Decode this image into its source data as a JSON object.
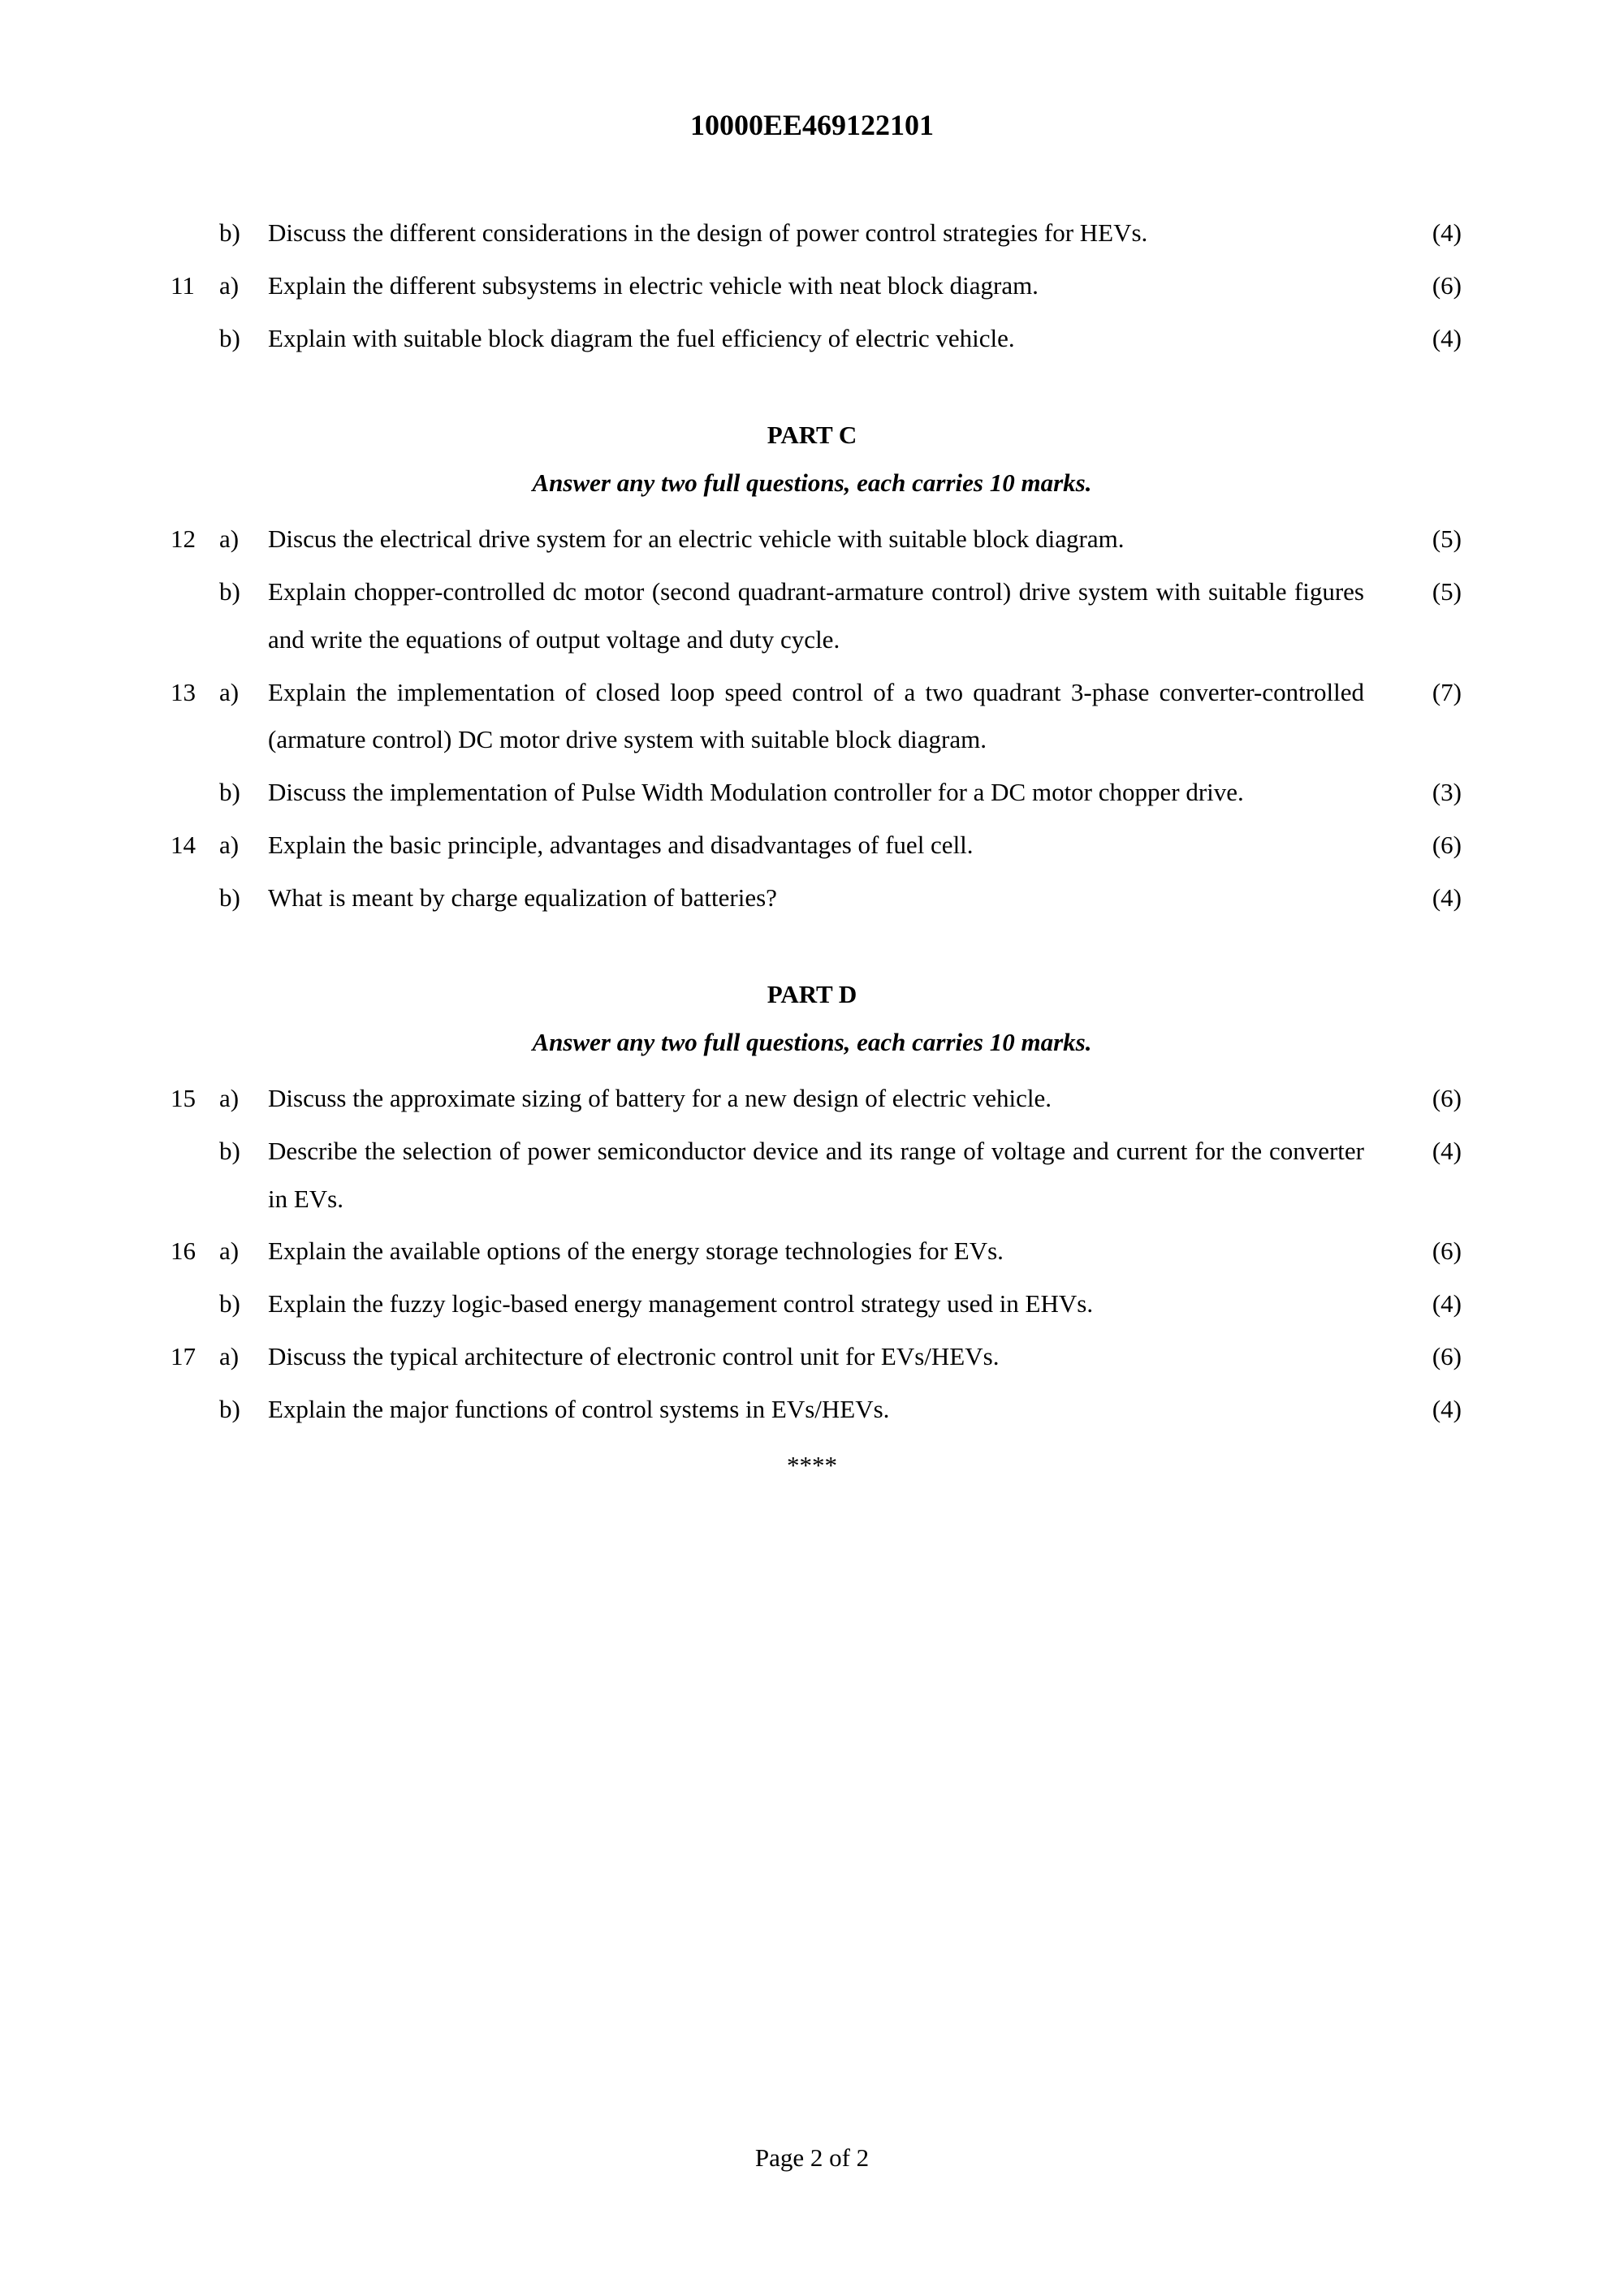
{
  "header": "10000EE469122101",
  "questions_a": [
    {
      "num": "",
      "part": "b)",
      "text": "Discuss the different considerations in the design of power control strategies for HEVs.",
      "marks": "(4)"
    },
    {
      "num": "11",
      "part": "a)",
      "text": "Explain the different subsystems in electric vehicle with neat block diagram.",
      "marks": "(6)"
    },
    {
      "num": "",
      "part": "b)",
      "text": "Explain with suitable block diagram the fuel efficiency of electric vehicle.",
      "marks": "(4)"
    }
  ],
  "part_c": {
    "title": "PART C",
    "instruction": "Answer any two full questions, each carries 10 marks."
  },
  "questions_c": [
    {
      "num": "12",
      "part": "a)",
      "text": "Discus the electrical drive system for an electric vehicle with suitable block diagram.",
      "marks": "(5)"
    },
    {
      "num": "",
      "part": "b)",
      "text": "Explain chopper-controlled dc motor (second quadrant-armature control) drive system with suitable figures and write the equations of output voltage and duty cycle.",
      "marks": "(5)"
    },
    {
      "num": "13",
      "part": "a)",
      "text": "Explain the implementation of closed loop speed control of a two quadrant 3-phase converter-controlled (armature control) DC motor drive system with suitable block diagram.",
      "marks": "(7)"
    },
    {
      "num": "",
      "part": "b)",
      "text": "Discuss the implementation of Pulse Width Modulation controller for a DC motor chopper drive.",
      "marks": "(3)"
    },
    {
      "num": "14",
      "part": "a)",
      "text": "Explain the basic principle, advantages and disadvantages of fuel cell.",
      "marks": "(6)"
    },
    {
      "num": "",
      "part": "b)",
      "text": "What is meant by charge equalization of batteries?",
      "marks": "(4)"
    }
  ],
  "part_d": {
    "title": "PART D",
    "instruction": "Answer any two full questions, each carries 10 marks."
  },
  "questions_d": [
    {
      "num": "15",
      "part": "a)",
      "text": "Discuss the approximate sizing of battery for a new design of electric vehicle.",
      "marks": "(6)"
    },
    {
      "num": "",
      "part": "b)",
      "text": "Describe the selection of power semiconductor device and its range of voltage and current for the converter in EVs.",
      "marks": "(4)"
    },
    {
      "num": "16",
      "part": "a)",
      "text": "Explain the available options of the energy storage technologies for EVs.",
      "marks": "(6)"
    },
    {
      "num": "",
      "part": "b)",
      "text": "Explain the fuzzy logic-based energy management control strategy used in EHVs.",
      "marks": "(4)"
    },
    {
      "num": "17",
      "part": "a)",
      "text": "Discuss the typical architecture of electronic control unit for EVs/HEVs.",
      "marks": "(6)"
    },
    {
      "num": "",
      "part": "b)",
      "text": "Explain the major functions of control systems in EVs/HEVs.",
      "marks": "(4)"
    }
  ],
  "stars": "****",
  "footer": "Page 2 of 2"
}
